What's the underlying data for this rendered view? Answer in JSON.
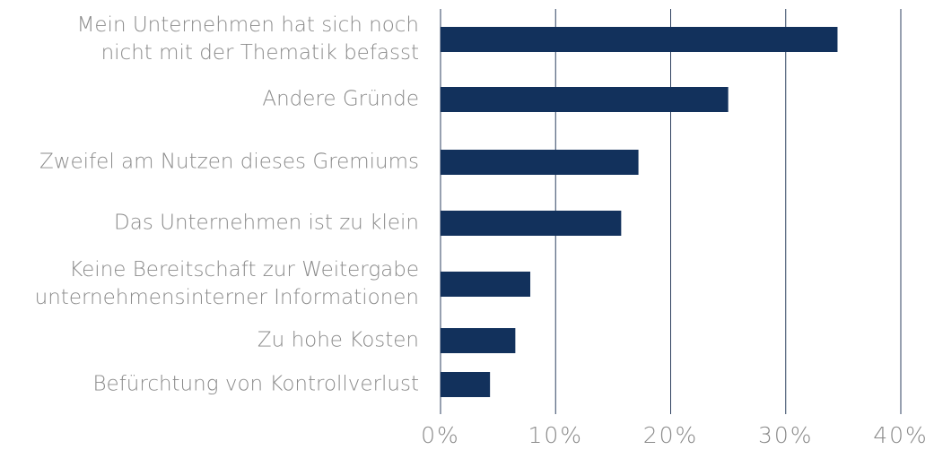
{
  "chart_data": {
    "type": "barh",
    "categories": [
      [
        "Mein Unternehmen hat sich noch",
        "nicht mit der Thematik befasst"
      ],
      [
        "Andere Gründe"
      ],
      [
        "Zweifel am Nutzen dieses Gremiums"
      ],
      [
        "Das Unternehmen ist zu klein"
      ],
      [
        "Keine Bereitschaft zur Weitergabe",
        "unternehmensinterner Informationen"
      ],
      [
        "Zu hohe Kosten"
      ],
      [
        "Befürchtung von Kontrollverlust"
      ]
    ],
    "values": [
      34.5,
      25.0,
      17.2,
      15.7,
      7.8,
      6.5,
      4.3
    ],
    "color": "#12315c",
    "xlim": [
      0,
      40
    ],
    "xticks": [
      {
        "value": 0,
        "label": "0%"
      },
      {
        "value": 10,
        "label": "10%"
      },
      {
        "value": 20,
        "label": "20%"
      },
      {
        "value": 30,
        "label": "30%"
      },
      {
        "value": 40,
        "label": "40%"
      }
    ],
    "grid": true
  }
}
